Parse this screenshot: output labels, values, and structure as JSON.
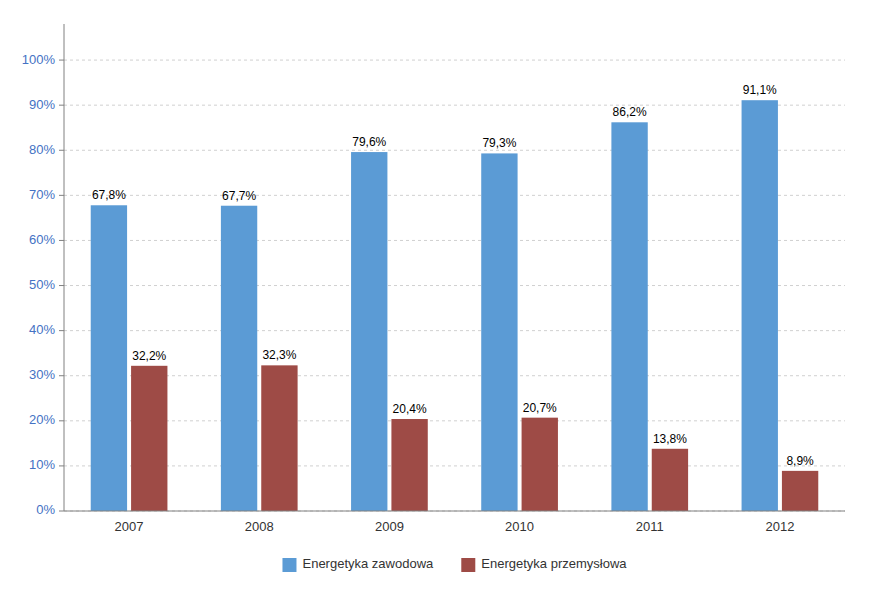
{
  "chart_data": {
    "type": "bar",
    "categories": [
      "2007",
      "2008",
      "2009",
      "2010",
      "2011",
      "2012"
    ],
    "series": [
      {
        "name": "Energetyka zawodowa",
        "color": "#5B9BD5",
        "values": [
          67.8,
          67.7,
          79.6,
          79.3,
          86.2,
          91.1
        ],
        "value_labels": [
          "67,8%",
          "67,7%",
          "79,6%",
          "79,3%",
          "86,2%",
          "91,1%"
        ]
      },
      {
        "name": "Energetyka przemysłowa",
        "color": "#9E4B46",
        "values": [
          32.2,
          32.3,
          20.4,
          20.7,
          13.8,
          8.9
        ],
        "value_labels": [
          "32,2%",
          "32,3%",
          "20,4%",
          "20,7%",
          "13,8%",
          "8,9%"
        ]
      }
    ],
    "ylim": [
      0,
      108
    ],
    "yticks": [
      {
        "value": 0,
        "label": "0%"
      },
      {
        "value": 10,
        "label": "10%"
      },
      {
        "value": 20,
        "label": "20%"
      },
      {
        "value": 30,
        "label": "30%"
      },
      {
        "value": 40,
        "label": "40%"
      },
      {
        "value": 50,
        "label": "50%"
      },
      {
        "value": 60,
        "label": "60%"
      },
      {
        "value": 70,
        "label": "70%"
      },
      {
        "value": 80,
        "label": "80%"
      },
      {
        "value": 90,
        "label": "90%"
      },
      {
        "value": 100,
        "label": "100%"
      }
    ],
    "grid": true,
    "legend": "bottom",
    "data_labels": true
  }
}
